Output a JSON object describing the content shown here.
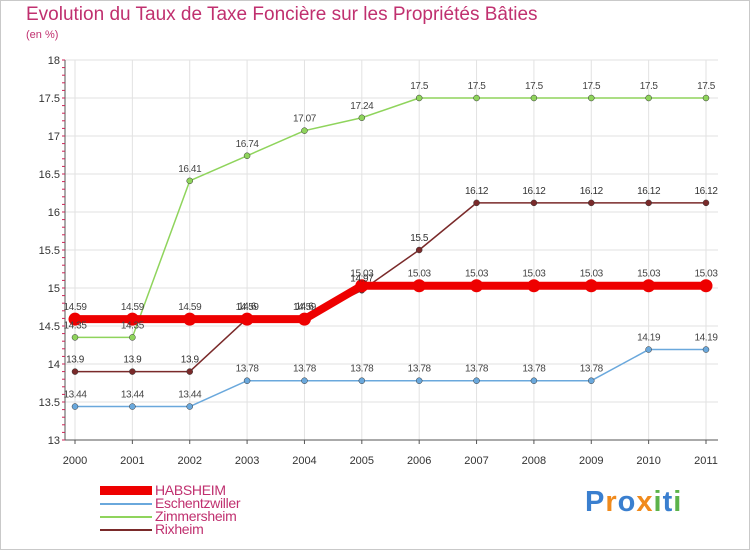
{
  "title": "Evolution du Taux de Taxe Foncière sur les Propriétés Bâties",
  "subtitle": "(en %)",
  "logo": {
    "text": "Proxiti",
    "letters": [
      "P",
      "r",
      "o",
      "x",
      "i",
      "t",
      "i"
    ],
    "colors": [
      "#3a7fcf",
      "#f08a1c",
      "#3a7fcf",
      "#f08a1c",
      "#5cb34a",
      "#3a7fcf",
      "#5cb34a"
    ]
  },
  "chart_data": {
    "type": "line",
    "title": "Evolution du Taux de Taxe Foncière sur les Propriétés Bâties",
    "ylabel": "(en %)",
    "xlabel": "",
    "categories": [
      "2000",
      "2001",
      "2002",
      "2003",
      "2004",
      "2005",
      "2006",
      "2007",
      "2008",
      "2009",
      "2010",
      "2011"
    ],
    "ylim": [
      13,
      18
    ],
    "yticks": [
      "13",
      "13.5",
      "14",
      "14.5",
      "15",
      "15.5",
      "16",
      "16.5",
      "17",
      "17.5",
      "18"
    ],
    "series": [
      {
        "name": "HABSHEIM",
        "color": "#ee0000",
        "values": [
          14.59,
          14.59,
          14.59,
          14.59,
          14.59,
          15.03,
          15.03,
          15.03,
          15.03,
          15.03,
          15.03,
          15.03
        ],
        "labels": [
          "14.59",
          "14.59",
          "14.59",
          "14.59",
          "14.59",
          "15.03",
          "15.03",
          "15.03",
          "15.03",
          "15.03",
          "15.03",
          "15.03"
        ]
      },
      {
        "name": "Eschentzwiller",
        "color": "#6aa8dc",
        "values": [
          13.44,
          13.44,
          13.44,
          13.78,
          13.78,
          13.78,
          13.78,
          13.78,
          13.78,
          13.78,
          14.19,
          14.19
        ],
        "labels": [
          "13.44",
          "13.44",
          "13.44",
          "13.78",
          "13.78",
          "13.78",
          "13.78",
          "13.78",
          "13.78",
          "13.78",
          "14.19",
          "14.19"
        ]
      },
      {
        "name": "Zimmersheim",
        "color": "#8fd45c",
        "values": [
          14.35,
          14.35,
          16.41,
          16.74,
          17.07,
          17.24,
          17.5,
          17.5,
          17.5,
          17.5,
          17.5,
          17.5
        ],
        "labels": [
          "14.35",
          "14.35",
          "16.41",
          "16.74",
          "17.07",
          "17.24",
          "17.5",
          "17.5",
          "17.5",
          "17.5",
          "17.5",
          "17.5"
        ]
      },
      {
        "name": "Rixheim",
        "color": "#7a2a2a",
        "values": [
          13.9,
          13.9,
          13.9,
          14.6,
          14.6,
          14.97,
          15.5,
          16.12,
          16.12,
          16.12,
          16.12,
          16.12
        ],
        "labels": [
          "13.9",
          "13.9",
          "13.9",
          "14.6",
          "14.6",
          "14.97",
          "15.5",
          "16.12",
          "16.12",
          "16.12",
          "16.12",
          "16.12"
        ]
      }
    ],
    "legend": "bottom-left"
  }
}
